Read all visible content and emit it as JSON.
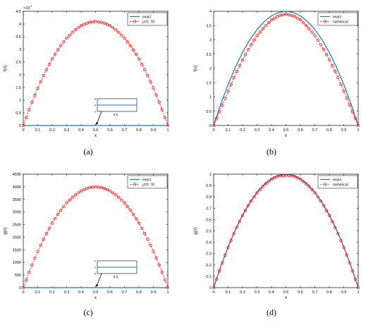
{
  "chart_data": [
    {
      "id": "a",
      "type": "line",
      "caption": "(a)",
      "xlabel": "x",
      "ylabel": "f(x)",
      "xlim": [
        0,
        1
      ],
      "ylim": [
        0,
        45000
      ],
      "x_ticks": [
        0,
        0.1,
        0.2,
        0.3,
        0.4,
        0.5,
        0.6,
        0.7,
        0.8,
        0.9,
        1
      ],
      "y_ticks": [
        0,
        5000,
        10000,
        15000,
        20000,
        25000,
        30000,
        35000,
        40000,
        45000
      ],
      "y_tick_labels": [
        "0",
        "0.5",
        "1",
        "1.5",
        "2",
        "2.5",
        "3",
        "3.5",
        "4",
        "4.5"
      ],
      "y_multiplier": "×10",
      "y_multiplier_exp": "4",
      "legend": {
        "placement": "top-right",
        "entries": [
          "exact",
          "μ=0.  =0"
        ]
      },
      "series": [
        {
          "name": "exact",
          "style": "solid",
          "color": "#1f77b4",
          "x": [
            0,
            0.1,
            0.2,
            0.3,
            0.4,
            0.5,
            0.6,
            0.7,
            0.8,
            0.9,
            1
          ],
          "y": [
            0,
            1.4,
            2.6,
            3.4,
            3.8,
            4,
            3.8,
            3.4,
            2.6,
            1.4,
            0
          ]
        },
        {
          "name": "μ=0.  =0",
          "style": "dashed-circle",
          "color": "#ff0000",
          "x": [
            0,
            0.05,
            0.1,
            0.15,
            0.2,
            0.25,
            0.3,
            0.35,
            0.4,
            0.45,
            0.5,
            0.55,
            0.6,
            0.65,
            0.7,
            0.75,
            0.8,
            0.85,
            0.9,
            0.95,
            1
          ],
          "y": [
            0,
            7790,
            14760,
            20910,
            26240,
            30750,
            34440,
            37310,
            39360,
            40590,
            41000,
            40590,
            39360,
            37310,
            34440,
            30750,
            26240,
            20910,
            14760,
            7790,
            0
          ]
        }
      ],
      "inset": {
        "ylim": [
          2,
          6
        ],
        "y_ticks": [
          "2",
          "4",
          "6"
        ],
        "x_tick": "0.5",
        "line_value": 4,
        "points_to": [
          0.5,
          0
        ]
      }
    },
    {
      "id": "b",
      "type": "line",
      "caption": "(b)",
      "xlabel": "x",
      "ylabel": "f(x)",
      "xlim": [
        0,
        1
      ],
      "ylim": [
        0,
        4
      ],
      "x_ticks": [
        0,
        0.1,
        0.2,
        0.3,
        0.4,
        0.5,
        0.6,
        0.7,
        0.8,
        0.9,
        1
      ],
      "y_ticks": [
        0,
        0.5,
        1,
        1.5,
        2,
        2.5,
        3,
        3.5,
        4
      ],
      "y_tick_labels": [
        "0",
        "0.5",
        "1",
        "1.5",
        "2",
        "2.5",
        "3",
        "3.5",
        "4"
      ],
      "legend": {
        "placement": "top-right",
        "entries": [
          "exact",
          "numerical"
        ]
      },
      "series": [
        {
          "name": "exact",
          "style": "solid",
          "color": "#1f77b4",
          "x": [
            0,
            0.05,
            0.1,
            0.15,
            0.2,
            0.25,
            0.3,
            0.35,
            0.4,
            0.45,
            0.5,
            0.55,
            0.6,
            0.65,
            0.7,
            0.75,
            0.8,
            0.85,
            0.9,
            0.95,
            1
          ],
          "y": [
            0,
            0.76,
            1.44,
            2.04,
            2.56,
            3.0,
            3.36,
            3.64,
            3.84,
            3.96,
            4.0,
            3.96,
            3.84,
            3.64,
            3.36,
            3.0,
            2.56,
            2.04,
            1.44,
            0.76,
            0
          ]
        },
        {
          "name": "numerical",
          "style": "dashed-circle",
          "color": "#ff0000",
          "x": [
            0,
            0.05,
            0.1,
            0.15,
            0.2,
            0.25,
            0.3,
            0.35,
            0.4,
            0.45,
            0.5,
            0.55,
            0.6,
            0.65,
            0.7,
            0.75,
            0.8,
            0.85,
            0.9,
            0.95,
            1
          ],
          "y": [
            0,
            0.6,
            1.2,
            1.8,
            2.3,
            2.75,
            3.15,
            3.45,
            3.7,
            3.85,
            3.9,
            3.85,
            3.7,
            3.45,
            3.15,
            2.75,
            2.3,
            1.8,
            1.2,
            0.6,
            0
          ]
        }
      ]
    },
    {
      "id": "c",
      "type": "line",
      "caption": "(c)",
      "xlabel": "x",
      "ylabel": "g(x)",
      "xlim": [
        0,
        1
      ],
      "ylim": [
        0,
        4500
      ],
      "x_ticks": [
        0,
        0.1,
        0.2,
        0.3,
        0.4,
        0.5,
        0.6,
        0.7,
        0.8,
        0.9,
        1
      ],
      "y_ticks": [
        0,
        500,
        1000,
        1500,
        2000,
        2500,
        3000,
        3500,
        4000,
        4500
      ],
      "y_tick_labels": [
        "0",
        "500",
        "1000",
        "1500",
        "2000",
        "2500",
        "3000",
        "3500",
        "4000",
        "4500"
      ],
      "legend": {
        "placement": "top-right",
        "entries": [
          "exact",
          "μ=0.  =0"
        ]
      },
      "series": [
        {
          "name": "exact",
          "style": "solid",
          "color": "#1f77b4",
          "x": [
            0,
            0.1,
            0.2,
            0.3,
            0.4,
            0.5,
            0.6,
            0.7,
            0.8,
            0.9,
            1
          ],
          "y": [
            0,
            0.36,
            0.64,
            0.84,
            0.96,
            1,
            0.96,
            0.84,
            0.64,
            0.36,
            0
          ]
        },
        {
          "name": "μ=0.  =0",
          "style": "dashed-circle",
          "color": "#ff0000",
          "x": [
            0,
            0.05,
            0.1,
            0.15,
            0.2,
            0.25,
            0.3,
            0.35,
            0.4,
            0.45,
            0.5,
            0.55,
            0.6,
            0.65,
            0.7,
            0.75,
            0.8,
            0.85,
            0.9,
            0.95,
            1
          ],
          "y": [
            0,
            760,
            1440,
            2040,
            2560,
            3000,
            3360,
            3640,
            3840,
            3960,
            4000,
            3960,
            3840,
            3640,
            3360,
            3000,
            2560,
            2040,
            1440,
            760,
            0
          ]
        }
      ],
      "inset": {
        "ylim": [
          0,
          2
        ],
        "y_ticks": [
          "0",
          "1",
          "2"
        ],
        "x_tick": "0.5",
        "line_value": 1,
        "points_to": [
          0.5,
          0
        ]
      }
    },
    {
      "id": "d",
      "type": "line",
      "caption": "(d)",
      "xlabel": "x",
      "ylabel": "g(x)",
      "xlim": [
        0,
        1
      ],
      "ylim": [
        0,
        1
      ],
      "x_ticks": [
        0,
        0.1,
        0.2,
        0.3,
        0.4,
        0.5,
        0.6,
        0.7,
        0.8,
        0.9,
        1
      ],
      "y_ticks": [
        0,
        0.1,
        0.2,
        0.3,
        0.4,
        0.5,
        0.6,
        0.7,
        0.8,
        0.9,
        1
      ],
      "y_tick_labels": [
        "0",
        "0.1",
        "0.2",
        "0.3",
        "0.4",
        "0.5",
        "0.6",
        "0.7",
        "0.8",
        "0.9",
        "1"
      ],
      "legend": {
        "placement": "top-right",
        "entries": [
          "exact",
          "numerical"
        ]
      },
      "series": [
        {
          "name": "exact",
          "style": "solid",
          "color": "#1f77b4",
          "x": [
            0,
            0.05,
            0.1,
            0.15,
            0.2,
            0.25,
            0.3,
            0.35,
            0.4,
            0.45,
            0.5,
            0.55,
            0.6,
            0.65,
            0.7,
            0.75,
            0.8,
            0.85,
            0.9,
            0.95,
            1
          ],
          "y": [
            0,
            0.19,
            0.36,
            0.51,
            0.64,
            0.75,
            0.84,
            0.91,
            0.96,
            0.99,
            1.0,
            0.99,
            0.96,
            0.91,
            0.84,
            0.75,
            0.64,
            0.51,
            0.36,
            0.19,
            0
          ]
        },
        {
          "name": "numerical",
          "style": "dashed-circle",
          "color": "#ff0000",
          "x": [
            0,
            0.05,
            0.1,
            0.15,
            0.2,
            0.25,
            0.3,
            0.35,
            0.4,
            0.45,
            0.5,
            0.55,
            0.6,
            0.65,
            0.7,
            0.75,
            0.8,
            0.85,
            0.9,
            0.95,
            1
          ],
          "y": [
            0,
            0.185,
            0.355,
            0.505,
            0.635,
            0.745,
            0.835,
            0.905,
            0.955,
            0.985,
            0.99,
            0.985,
            0.955,
            0.905,
            0.835,
            0.745,
            0.635,
            0.505,
            0.355,
            0.185,
            0
          ]
        }
      ]
    }
  ]
}
